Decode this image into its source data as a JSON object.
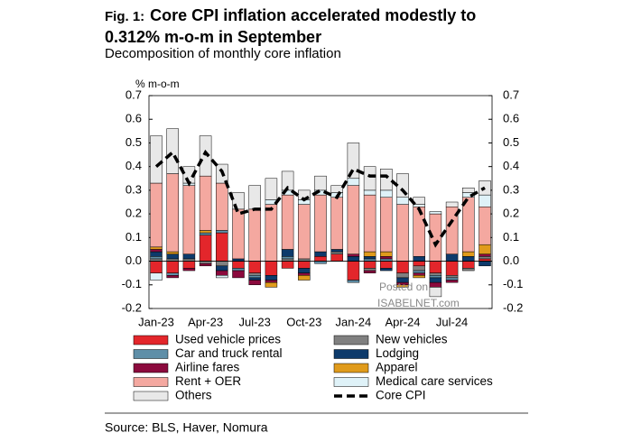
{
  "chart_data": {
    "type": "stacked-bar-line",
    "fig_label": "Fig. 1:",
    "title": "Core CPI inflation accelerated modestly to 0.312% m-o-m in September",
    "subtitle": "Decomposition of monthly core inflation",
    "y_label": "% m-o-m",
    "source": "Source: BLS, Haver, Nomura",
    "watermark": [
      "Posted on",
      "ISABELNET.com"
    ],
    "categories": [
      "Jan-23",
      null,
      null,
      "Apr-23",
      null,
      null,
      "Jul-23",
      null,
      null,
      "Oct-23",
      null,
      null,
      "Jan-24",
      null,
      null,
      "Apr-24",
      null,
      null,
      "Jul-24",
      null,
      null
    ],
    "ylim": [
      -0.2,
      0.7
    ],
    "yticks": [
      -0.2,
      -0.1,
      {
        "value": 0,
        "label": "0.0"
      },
      0.1,
      0.2,
      0.3,
      0.4,
      0.5,
      0.6,
      0.7
    ],
    "y2lim": [
      -0.2,
      0.7
    ],
    "y2ticks": [
      -0.2,
      -0.1,
      {
        "value": 0,
        "label": "0.0"
      },
      0.1,
      0.2,
      0.3,
      0.4,
      0.5,
      0.6,
      0.7
    ],
    "series": [
      {
        "name": "Used vehicle prices",
        "color": "#e3262b",
        "values": [
          -0.05,
          -0.05,
          -0.03,
          0.11,
          0.12,
          -0.03,
          -0.05,
          -0.06,
          -0.03,
          -0.03,
          0.02,
          0.03,
          -0.08,
          -0.03,
          -0.03,
          -0.05,
          -0.02,
          -0.05,
          -0.06,
          -0.03,
          0.01
        ]
      },
      {
        "name": "New vehicles",
        "color": "#808080",
        "values": [
          0.01,
          0.01,
          0.01,
          -0.01,
          -0.02,
          0,
          -0.01,
          0,
          0.01,
          0.01,
          0,
          0.01,
          0,
          -0.01,
          0,
          -0.02,
          -0.02,
          -0.01,
          -0.01,
          -0.01,
          0.01
        ]
      },
      {
        "name": "Car and truck rental",
        "color": "#5f8fa8",
        "values": [
          0.01,
          -0.01,
          0,
          0.01,
          0.01,
          -0.01,
          -0.01,
          0,
          0.01,
          0,
          -0.01,
          0,
          -0.01,
          0.01,
          0.01,
          0,
          -0.01,
          -0.01,
          -0.01,
          0,
          0
        ]
      },
      {
        "name": "Lodging",
        "color": "#0d3a6b",
        "values": [
          0.02,
          0.02,
          0.02,
          0,
          -0.02,
          0.01,
          -0.01,
          -0.02,
          0.03,
          -0.02,
          0.02,
          0.01,
          0.02,
          0.01,
          -0.01,
          -0.02,
          0.02,
          -0.02,
          0.03,
          0.02,
          -0.02
        ]
      },
      {
        "name": "Airline fares",
        "color": "#8b0a3d",
        "values": [
          0.01,
          -0.01,
          -0.01,
          -0.01,
          -0.02,
          -0.03,
          -0.02,
          -0.01,
          0,
          -0.01,
          0,
          0,
          0.01,
          -0.01,
          0.01,
          -0.01,
          -0.01,
          -0.02,
          -0.01,
          0,
          0.01
        ]
      },
      {
        "name": "Apparel",
        "color": "#e09b1c",
        "values": [
          0.01,
          0.01,
          0,
          0.01,
          0,
          0,
          0,
          -0.02,
          0,
          -0.02,
          0,
          0,
          0,
          0.02,
          0.02,
          -0.01,
          -0.01,
          0,
          0,
          0.02,
          0.04
        ]
      },
      {
        "name": "Rent + OER",
        "color": "#f4a8a0",
        "values": [
          0.27,
          0.33,
          0.29,
          0.23,
          0.2,
          0.21,
          0.22,
          0.24,
          0.23,
          0.23,
          0.24,
          0.22,
          0.29,
          0.24,
          0.23,
          0.24,
          0.21,
          0.2,
          0.2,
          0.23,
          0.16
        ]
      },
      {
        "name": "Medical care services",
        "color": "#dff2f8",
        "values": [
          -0.03,
          0,
          0.01,
          0,
          -0.01,
          0,
          0,
          0.02,
          0.02,
          0.02,
          0.02,
          0.02,
          0.03,
          0.02,
          0.03,
          0.03,
          0.01,
          0.01,
          0,
          0.02,
          0.05
        ]
      },
      {
        "name": "Others",
        "color": "#e8e8e8",
        "values": [
          0.2,
          0.19,
          0.07,
          0.17,
          0.08,
          0.07,
          0.1,
          0.09,
          0.08,
          0.04,
          0.06,
          0.03,
          0.15,
          0.1,
          0.09,
          0.1,
          0.03,
          -0.04,
          0.02,
          0.02,
          0.06
        ]
      },
      {
        "name": "Core CPI",
        "color": "#000000",
        "type": "line",
        "values": [
          0.4,
          0.46,
          0.33,
          0.46,
          0.38,
          0.2,
          0.22,
          0.22,
          0.31,
          0.26,
          0.3,
          0.27,
          0.39,
          0.36,
          0.36,
          0.3,
          0.22,
          0.07,
          0.17,
          0.27,
          0.31
        ]
      }
    ]
  }
}
